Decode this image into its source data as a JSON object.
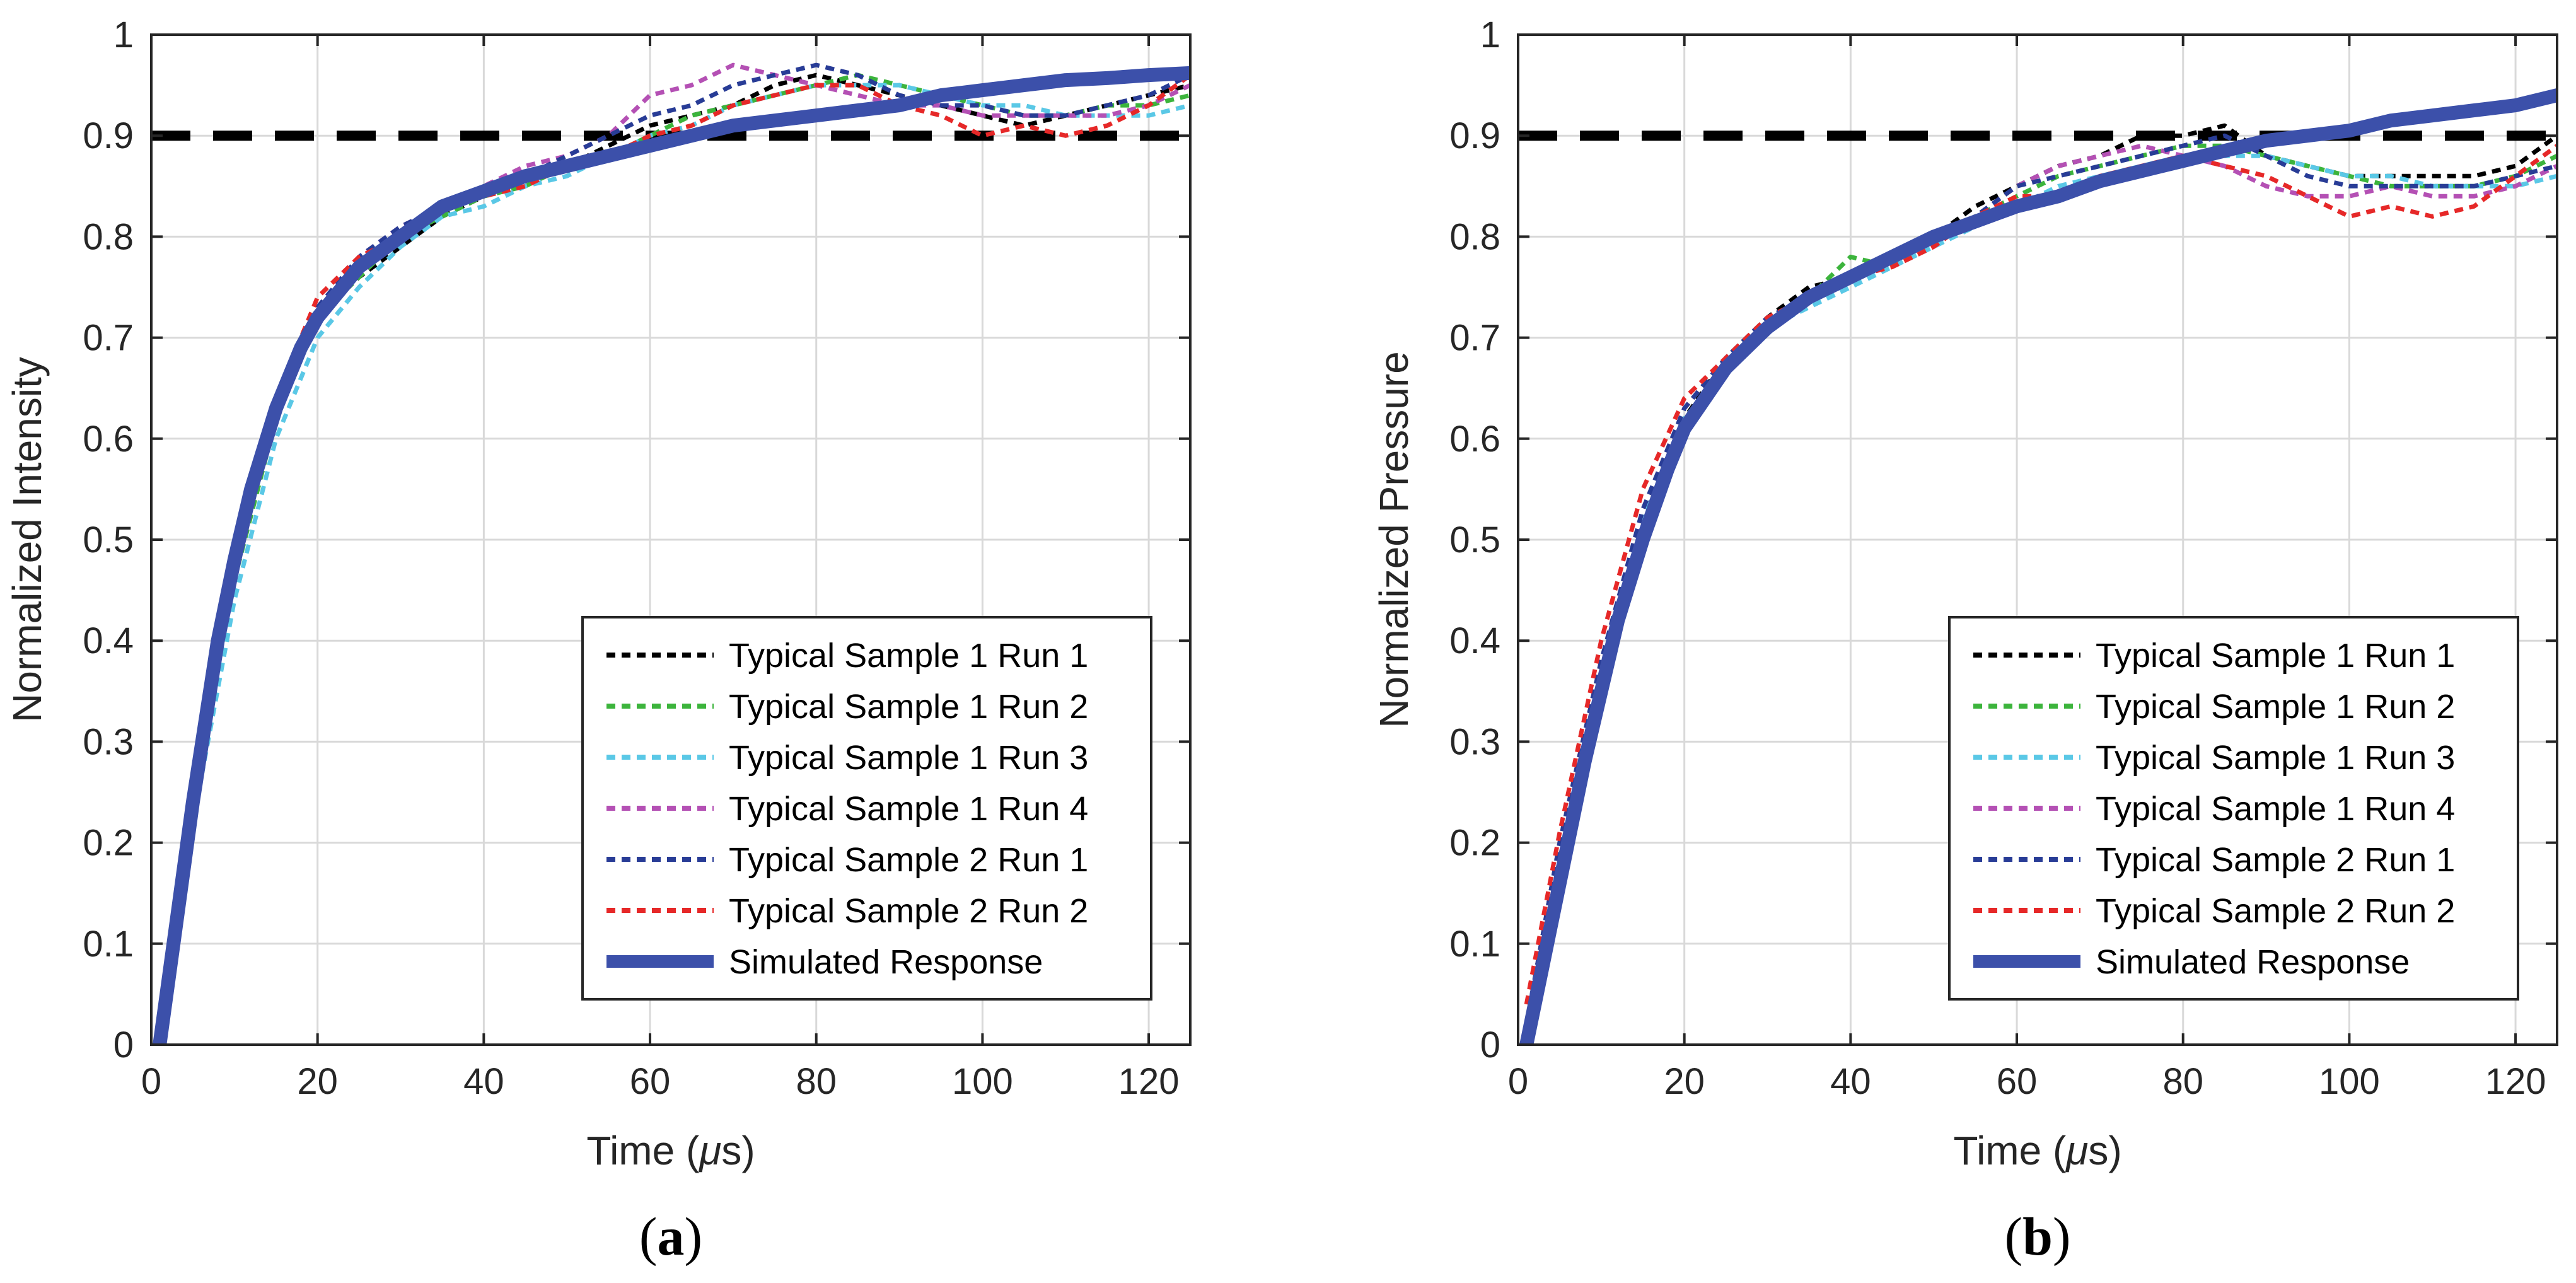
{
  "chart_data": [
    {
      "type": "line",
      "panel_label_open": "(",
      "panel_label_letter": "a",
      "panel_label_close": ")",
      "xlabel_prefix": "Time (",
      "xlabel_mu": "μ",
      "xlabel_suffix": "s)",
      "ylabel": "Normalized Intensity",
      "xlim": [
        0,
        125
      ],
      "ylim": [
        0,
        1
      ],
      "xticks": [
        0,
        20,
        40,
        60,
        80,
        100,
        120
      ],
      "yticks": [
        0,
        0.1,
        0.2,
        0.3,
        0.4,
        0.5,
        0.6,
        0.7,
        0.8,
        0.9,
        1
      ],
      "ytick_labels": [
        "0",
        "0.1",
        "0.2",
        "0.3",
        "0.4",
        "0.5",
        "0.6",
        "0.7",
        "0.8",
        "0.9",
        "1"
      ],
      "grid": true,
      "legend_position": "bottom-right",
      "threshold": 0.9,
      "series": [
        {
          "name": "Typical Sample 1 Run 1",
          "color": "#000000",
          "style": "dotted",
          "x": [
            1,
            5,
            10,
            15,
            20,
            25,
            30,
            35,
            40,
            45,
            50,
            55,
            60,
            65,
            70,
            75,
            80,
            85,
            90,
            95,
            100,
            105,
            110,
            115,
            120,
            125
          ],
          "y": [
            0,
            0.25,
            0.47,
            0.62,
            0.72,
            0.76,
            0.79,
            0.82,
            0.84,
            0.86,
            0.87,
            0.89,
            0.91,
            0.92,
            0.93,
            0.95,
            0.96,
            0.95,
            0.94,
            0.93,
            0.92,
            0.91,
            0.92,
            0.93,
            0.94,
            0.95
          ]
        },
        {
          "name": "Typical Sample 1 Run 2",
          "color": "#3cb43c",
          "style": "dotted",
          "x": [
            1,
            5,
            10,
            15,
            20,
            25,
            30,
            35,
            40,
            45,
            50,
            55,
            60,
            65,
            70,
            75,
            80,
            85,
            90,
            95,
            100,
            105,
            110,
            115,
            120,
            125
          ],
          "y": [
            0,
            0.24,
            0.46,
            0.62,
            0.72,
            0.76,
            0.8,
            0.82,
            0.84,
            0.85,
            0.87,
            0.88,
            0.9,
            0.92,
            0.93,
            0.94,
            0.95,
            0.96,
            0.95,
            0.94,
            0.93,
            0.92,
            0.92,
            0.93,
            0.93,
            0.94
          ]
        },
        {
          "name": "Typical Sample 1 Run 3",
          "color": "#5ac8e6",
          "style": "dotted",
          "x": [
            1,
            5,
            10,
            15,
            20,
            25,
            30,
            35,
            40,
            45,
            50,
            55,
            60,
            65,
            70,
            75,
            80,
            85,
            90,
            95,
            100,
            105,
            110,
            115,
            120,
            125
          ],
          "y": [
            0,
            0.22,
            0.44,
            0.6,
            0.7,
            0.75,
            0.79,
            0.82,
            0.83,
            0.85,
            0.86,
            0.88,
            0.9,
            0.91,
            0.93,
            0.94,
            0.95,
            0.95,
            0.95,
            0.94,
            0.93,
            0.93,
            0.92,
            0.92,
            0.92,
            0.93
          ]
        },
        {
          "name": "Typical Sample 1 Run 4",
          "color": "#b450b4",
          "style": "dotted",
          "x": [
            1,
            5,
            10,
            15,
            20,
            25,
            30,
            35,
            40,
            45,
            50,
            55,
            60,
            65,
            70,
            75,
            80,
            85,
            90,
            95,
            100,
            105,
            110,
            115,
            120,
            125
          ],
          "y": [
            0,
            0.25,
            0.48,
            0.63,
            0.73,
            0.78,
            0.81,
            0.83,
            0.85,
            0.87,
            0.88,
            0.9,
            0.94,
            0.95,
            0.97,
            0.96,
            0.95,
            0.94,
            0.93,
            0.93,
            0.92,
            0.92,
            0.92,
            0.92,
            0.93,
            0.95
          ]
        },
        {
          "name": "Typical Sample 2 Run 1",
          "color": "#283c96",
          "style": "dotted",
          "x": [
            1,
            5,
            10,
            15,
            20,
            25,
            30,
            35,
            40,
            45,
            50,
            55,
            60,
            65,
            70,
            75,
            80,
            85,
            90,
            95,
            100,
            105,
            110,
            115,
            120,
            125
          ],
          "y": [
            0,
            0.25,
            0.47,
            0.63,
            0.73,
            0.78,
            0.81,
            0.83,
            0.85,
            0.86,
            0.88,
            0.9,
            0.92,
            0.93,
            0.95,
            0.96,
            0.97,
            0.96,
            0.94,
            0.93,
            0.93,
            0.92,
            0.92,
            0.93,
            0.94,
            0.96
          ]
        },
        {
          "name": "Typical Sample 2 Run 2",
          "color": "#e62828",
          "style": "dotted",
          "x": [
            1,
            5,
            10,
            15,
            20,
            25,
            30,
            35,
            40,
            45,
            50,
            55,
            60,
            65,
            70,
            75,
            80,
            85,
            90,
            95,
            100,
            105,
            110,
            115,
            120,
            125
          ],
          "y": [
            0,
            0.25,
            0.48,
            0.64,
            0.74,
            0.78,
            0.8,
            0.83,
            0.84,
            0.85,
            0.87,
            0.88,
            0.9,
            0.91,
            0.93,
            0.94,
            0.95,
            0.95,
            0.93,
            0.92,
            0.9,
            0.91,
            0.9,
            0.91,
            0.93,
            0.96
          ]
        },
        {
          "name": "Simulated Response",
          "color": "#3c50aa",
          "style": "solid",
          "x": [
            1,
            3,
            5,
            8,
            10,
            12,
            15,
            18,
            20,
            25,
            30,
            35,
            40,
            45,
            50,
            55,
            60,
            65,
            70,
            75,
            80,
            85,
            90,
            95,
            100,
            105,
            110,
            115,
            120,
            125
          ],
          "y": [
            0,
            0.12,
            0.24,
            0.4,
            0.48,
            0.55,
            0.63,
            0.69,
            0.72,
            0.77,
            0.8,
            0.83,
            0.845,
            0.86,
            0.87,
            0.88,
            0.89,
            0.9,
            0.91,
            0.915,
            0.92,
            0.925,
            0.93,
            0.94,
            0.945,
            0.95,
            0.955,
            0.957,
            0.96,
            0.962
          ]
        }
      ]
    },
    {
      "type": "line",
      "panel_label_open": "(",
      "panel_label_letter": "b",
      "panel_label_close": ")",
      "xlabel_prefix": "Time (",
      "xlabel_mu": "μ",
      "xlabel_suffix": "s)",
      "ylabel": "Normalized Pressure",
      "xlim": [
        0,
        125
      ],
      "ylim": [
        0,
        1
      ],
      "xticks": [
        0,
        20,
        40,
        60,
        80,
        100,
        120
      ],
      "yticks": [
        0,
        0.1,
        0.2,
        0.3,
        0.4,
        0.5,
        0.6,
        0.7,
        0.8,
        0.9,
        1
      ],
      "ytick_labels": [
        "0",
        "0.1",
        "0.2",
        "0.3",
        "0.4",
        "0.5",
        "0.6",
        "0.7",
        "0.8",
        "0.9",
        "1"
      ],
      "grid": true,
      "legend_position": "bottom-right",
      "threshold": 0.9,
      "series": [
        {
          "name": "Typical Sample 1 Run 1",
          "color": "#000000",
          "style": "dotted",
          "x": [
            1,
            5,
            10,
            15,
            20,
            25,
            30,
            35,
            40,
            45,
            50,
            55,
            60,
            65,
            70,
            75,
            80,
            85,
            90,
            95,
            100,
            105,
            110,
            115,
            120,
            125
          ],
          "y": [
            0.02,
            0.2,
            0.38,
            0.52,
            0.62,
            0.68,
            0.72,
            0.75,
            0.76,
            0.78,
            0.8,
            0.83,
            0.85,
            0.87,
            0.88,
            0.9,
            0.9,
            0.91,
            0.88,
            0.87,
            0.86,
            0.86,
            0.86,
            0.86,
            0.87,
            0.9
          ]
        },
        {
          "name": "Typical Sample 1 Run 2",
          "color": "#3cb43c",
          "style": "dotted",
          "x": [
            1,
            5,
            10,
            15,
            20,
            25,
            30,
            35,
            40,
            45,
            50,
            55,
            60,
            65,
            70,
            75,
            80,
            85,
            90,
            95,
            100,
            105,
            110,
            115,
            120,
            125
          ],
          "y": [
            0.02,
            0.2,
            0.38,
            0.53,
            0.63,
            0.68,
            0.72,
            0.74,
            0.78,
            0.77,
            0.8,
            0.82,
            0.84,
            0.86,
            0.87,
            0.88,
            0.89,
            0.89,
            0.88,
            0.87,
            0.86,
            0.85,
            0.85,
            0.85,
            0.86,
            0.88
          ]
        },
        {
          "name": "Typical Sample 1 Run 3",
          "color": "#5ac8e6",
          "style": "dotted",
          "x": [
            1,
            5,
            10,
            15,
            20,
            25,
            30,
            35,
            40,
            45,
            50,
            55,
            60,
            65,
            70,
            75,
            80,
            85,
            90,
            95,
            100,
            105,
            110,
            115,
            120,
            125
          ],
          "y": [
            0.02,
            0.19,
            0.37,
            0.52,
            0.62,
            0.67,
            0.71,
            0.73,
            0.75,
            0.77,
            0.79,
            0.81,
            0.83,
            0.85,
            0.86,
            0.87,
            0.88,
            0.88,
            0.88,
            0.87,
            0.86,
            0.86,
            0.85,
            0.85,
            0.85,
            0.86
          ]
        },
        {
          "name": "Typical Sample 1 Run 4",
          "color": "#b450b4",
          "style": "dotted",
          "x": [
            1,
            5,
            10,
            15,
            20,
            25,
            30,
            35,
            40,
            45,
            50,
            55,
            60,
            65,
            70,
            75,
            80,
            85,
            90,
            95,
            100,
            105,
            110,
            115,
            120,
            125
          ],
          "y": [
            0.02,
            0.2,
            0.38,
            0.53,
            0.63,
            0.68,
            0.72,
            0.74,
            0.76,
            0.78,
            0.8,
            0.82,
            0.85,
            0.87,
            0.88,
            0.89,
            0.88,
            0.87,
            0.85,
            0.84,
            0.84,
            0.85,
            0.84,
            0.84,
            0.85,
            0.87
          ]
        },
        {
          "name": "Typical Sample 2 Run 1",
          "color": "#283c96",
          "style": "dotted",
          "x": [
            1,
            5,
            10,
            15,
            20,
            25,
            30,
            35,
            40,
            45,
            50,
            55,
            60,
            65,
            70,
            75,
            80,
            85,
            90,
            95,
            100,
            105,
            110,
            115,
            120,
            125
          ],
          "y": [
            0.02,
            0.2,
            0.38,
            0.53,
            0.63,
            0.68,
            0.72,
            0.74,
            0.76,
            0.78,
            0.8,
            0.82,
            0.85,
            0.86,
            0.87,
            0.88,
            0.89,
            0.9,
            0.88,
            0.86,
            0.85,
            0.85,
            0.85,
            0.85,
            0.86,
            0.87
          ]
        },
        {
          "name": "Typical Sample 2 Run 2",
          "color": "#e62828",
          "style": "dotted",
          "x": [
            1,
            5,
            10,
            15,
            20,
            25,
            30,
            35,
            40,
            45,
            50,
            55,
            60,
            65,
            70,
            75,
            80,
            85,
            90,
            95,
            100,
            105,
            110,
            115,
            120,
            125
          ],
          "y": [
            0.04,
            0.21,
            0.4,
            0.55,
            0.64,
            0.68,
            0.72,
            0.74,
            0.76,
            0.77,
            0.79,
            0.82,
            0.84,
            0.84,
            0.86,
            0.87,
            0.88,
            0.87,
            0.86,
            0.84,
            0.82,
            0.83,
            0.82,
            0.83,
            0.86,
            0.89
          ]
        },
        {
          "name": "Simulated Response",
          "color": "#3c50aa",
          "style": "solid",
          "x": [
            1,
            3,
            5,
            8,
            10,
            12,
            15,
            18,
            20,
            25,
            30,
            35,
            40,
            45,
            50,
            55,
            60,
            65,
            70,
            75,
            80,
            85,
            90,
            95,
            100,
            105,
            110,
            115,
            120,
            125
          ],
          "y": [
            0,
            0.08,
            0.16,
            0.28,
            0.35,
            0.42,
            0.5,
            0.57,
            0.61,
            0.67,
            0.71,
            0.74,
            0.76,
            0.78,
            0.8,
            0.815,
            0.83,
            0.84,
            0.855,
            0.865,
            0.875,
            0.885,
            0.895,
            0.9,
            0.905,
            0.915,
            0.92,
            0.925,
            0.93,
            0.94
          ]
        }
      ]
    }
  ]
}
